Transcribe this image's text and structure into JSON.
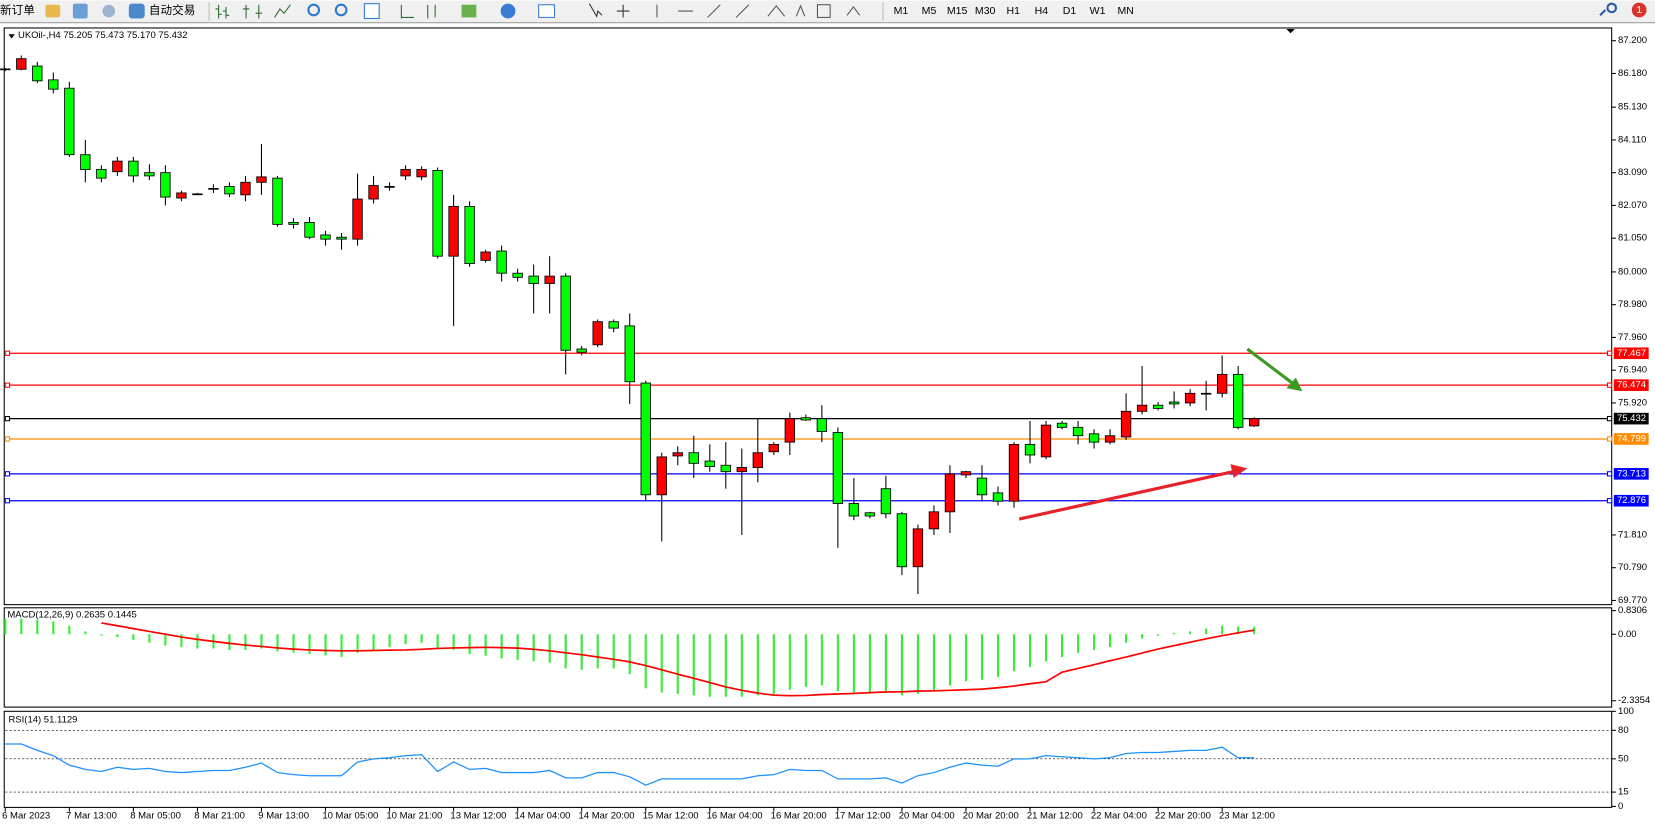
{
  "toolbar": {
    "new_order": "新订单",
    "auto_trading": "自动交易",
    "timeframes": [
      "M1",
      "M5",
      "M15",
      "M30",
      "H1",
      "H4",
      "D1",
      "W1",
      "MN"
    ],
    "notifications": 1
  },
  "chart_data": [
    {
      "type": "candlestick",
      "title": "UKOil-,H4  75.205 75.473 75.170 75.432",
      "categories": [
        "6 Mar 2023",
        null,
        null,
        null,
        "7 Mar 13:00",
        null,
        null,
        null,
        "8 Mar 05:00",
        null,
        null,
        null,
        "8 Mar 21:00",
        null,
        null,
        null,
        "9 Mar 13:00",
        null,
        null,
        null,
        "10 Mar 05:00",
        null,
        null,
        null,
        "10 Mar 21:00",
        null,
        null,
        null,
        "13 Mar 12:00",
        null,
        null,
        null,
        "14 Mar 04:00",
        null,
        null,
        null,
        "14 Mar 20:00",
        null,
        null,
        null,
        "15 Mar 12:00",
        null,
        null,
        null,
        "16 Mar 04:00",
        null,
        null,
        null,
        "16 Mar 20:00",
        null,
        null,
        null,
        "17 Mar 12:00",
        null,
        null,
        null,
        "20 Mar 04:00",
        null,
        null,
        null,
        "20 Mar 20:00",
        null,
        null,
        null,
        "21 Mar 12:00",
        null,
        null,
        null,
        "22 Mar 04:00",
        null,
        null,
        null,
        "22 Mar 20:00",
        null,
        null,
        null,
        "23 Mar 12:00",
        null,
        null
      ],
      "open": [
        86.3,
        86.31,
        86.41,
        85.98,
        85.72,
        83.65,
        83.19,
        83.12,
        83.45,
        83.09,
        83.09,
        82.3,
        82.43,
        82.6,
        82.66,
        82.4,
        82.79,
        82.92,
        81.54,
        81.54,
        81.15,
        81.08,
        81.02,
        82.27,
        82.66,
        82.99,
        82.96,
        83.16,
        80.49,
        82.04,
        80.36,
        80.65,
        79.96,
        79.87,
        79.64,
        79.87,
        77.6,
        77.73,
        78.45,
        78.32,
        76.54,
        73.06,
        74.27,
        74.37,
        74.11,
        73.98,
        73.78,
        73.91,
        74.4,
        74.7,
        75.46,
        75.43,
        75.0,
        72.79,
        72.5,
        73.25,
        72.47,
        70.82,
        72.0,
        72.53,
        73.68,
        73.58,
        73.12,
        72.86,
        74.63,
        74.24,
        75.29,
        75.16,
        74.96,
        74.7,
        74.86,
        75.66,
        75.85,
        75.95,
        75.92,
        76.22,
        76.22,
        76.81,
        75.205
      ],
      "high": [
        86.35,
        86.74,
        86.54,
        86.21,
        85.92,
        84.11,
        83.32,
        83.58,
        83.58,
        83.35,
        83.32,
        82.53,
        82.46,
        82.73,
        82.79,
        82.99,
        83.98,
        82.99,
        81.67,
        81.71,
        81.28,
        81.21,
        83.06,
        82.99,
        82.79,
        83.32,
        83.29,
        83.25,
        82.4,
        82.2,
        80.69,
        80.82,
        80.1,
        80.23,
        80.49,
        79.96,
        77.69,
        78.52,
        78.52,
        78.71,
        76.61,
        74.37,
        74.57,
        74.9,
        74.63,
        74.7,
        74.5,
        75.43,
        74.7,
        75.62,
        75.56,
        75.85,
        75.16,
        73.58,
        72.53,
        73.65,
        72.53,
        72.13,
        72.73,
        73.98,
        73.81,
        73.98,
        73.32,
        74.7,
        75.36,
        75.36,
        75.36,
        75.36,
        75.1,
        75.1,
        76.22,
        77.07,
        75.95,
        76.28,
        76.35,
        76.61,
        77.4,
        77.07,
        75.473
      ],
      "low": [
        86.25,
        86.28,
        85.88,
        85.56,
        83.58,
        82.79,
        82.79,
        82.99,
        82.79,
        82.86,
        82.07,
        82.2,
        82.4,
        82.46,
        82.33,
        82.2,
        82.4,
        81.41,
        81.35,
        81.02,
        80.82,
        80.69,
        80.82,
        82.13,
        82.53,
        82.86,
        82.86,
        80.42,
        78.32,
        80.16,
        80.29,
        79.7,
        79.7,
        78.71,
        78.71,
        76.81,
        77.4,
        77.66,
        78.12,
        75.89,
        72.86,
        71.61,
        73.98,
        73.58,
        73.78,
        73.25,
        71.81,
        73.45,
        74.3,
        74.3,
        75.36,
        74.7,
        71.41,
        72.27,
        72.33,
        72.33,
        70.56,
        69.97,
        71.81,
        71.87,
        73.58,
        72.86,
        72.73,
        72.66,
        74.04,
        74.17,
        75.1,
        74.63,
        74.5,
        74.63,
        74.77,
        75.56,
        75.69,
        75.75,
        75.82,
        75.69,
        76.09,
        75.1,
        75.17
      ],
      "close": [
        86.32,
        86.64,
        85.95,
        85.69,
        83.65,
        83.19,
        82.92,
        83.45,
        82.99,
        82.99,
        82.33,
        82.46,
        82.43,
        82.6,
        82.43,
        82.79,
        82.96,
        81.48,
        81.48,
        81.08,
        81.02,
        81.02,
        82.27,
        82.69,
        82.66,
        83.19,
        83.19,
        80.49,
        82.04,
        80.26,
        80.62,
        79.96,
        79.83,
        79.64,
        79.87,
        77.56,
        77.5,
        78.45,
        78.25,
        76.58,
        73.06,
        74.24,
        74.37,
        74.04,
        73.94,
        73.78,
        73.91,
        74.37,
        74.63,
        75.43,
        75.39,
        75.03,
        72.79,
        72.4,
        72.4,
        72.47,
        70.82,
        72.0,
        72.53,
        73.71,
        73.78,
        73.06,
        72.86,
        74.63,
        74.3,
        75.23,
        75.16,
        74.9,
        74.7,
        74.9,
        75.66,
        75.85,
        75.75,
        75.89,
        76.22,
        76.22,
        76.81,
        75.16,
        75.432
      ],
      "up_color": "#ff0000",
      "down_color": "#00ff00",
      "ylim": [
        69.64,
        87.53
      ],
      "yticks": [
        {
          "value": 87.2,
          "label": "87.200"
        },
        {
          "value": 86.18,
          "label": "86.180"
        },
        {
          "value": 85.13,
          "label": "85.130"
        },
        {
          "value": 84.11,
          "label": "84.110"
        },
        {
          "value": 83.09,
          "label": "83.090"
        },
        {
          "value": 82.07,
          "label": "82.070"
        },
        {
          "value": 81.05,
          "label": "81.050"
        },
        {
          "value": 80,
          "label": "80.000"
        },
        {
          "value": 78.98,
          "label": "78.980"
        },
        {
          "value": 77.96,
          "label": "77.960"
        },
        {
          "value": 76.94,
          "label": "76.940"
        },
        {
          "value": 75.92,
          "label": "75.920"
        },
        {
          "value": 71.81,
          "label": "71.810"
        },
        {
          "value": 70.79,
          "label": "70.790"
        },
        {
          "value": 69.77,
          "label": "69.770"
        }
      ],
      "levels": [
        {
          "value": 77.467,
          "color": "#ff0000"
        },
        {
          "value": 76.474,
          "color": "#ff0000"
        },
        {
          "value": 75.432,
          "color": "#000000"
        },
        {
          "value": 74.799,
          "color": "#ff8c00"
        },
        {
          "value": 73.713,
          "color": "#0000ff"
        },
        {
          "value": 72.876,
          "color": "#0000ff"
        }
      ]
    },
    {
      "type": "macd",
      "title": "MACD(12,26,9) 0.2635 0.1445",
      "histogram": {
        "color": "#33ee33",
        "values": [
          0.55,
          0.55,
          0.5,
          0.45,
          0.3,
          0.1,
          -0.05,
          -0.1,
          -0.2,
          -0.3,
          -0.4,
          -0.45,
          -0.5,
          -0.5,
          -0.55,
          -0.55,
          -0.5,
          -0.6,
          -0.65,
          -0.7,
          -0.75,
          -0.8,
          -0.65,
          -0.55,
          -0.45,
          -0.35,
          -0.3,
          -0.5,
          -0.55,
          -0.7,
          -0.75,
          -0.85,
          -0.9,
          -0.95,
          -1.0,
          -1.2,
          -1.25,
          -1.2,
          -1.2,
          -1.4,
          -1.9,
          -2.05,
          -2.1,
          -2.15,
          -2.2,
          -2.2,
          -2.2,
          -2.15,
          -2.1,
          -1.95,
          -1.85,
          -1.8,
          -2.0,
          -2.05,
          -2.05,
          -2.0,
          -2.15,
          -2.1,
          -2.0,
          -1.8,
          -1.65,
          -1.6,
          -1.5,
          -1.3,
          -1.15,
          -0.95,
          -0.8,
          -0.65,
          -0.55,
          -0.45,
          -0.3,
          -0.15,
          -0.05,
          0.05,
          0.1,
          0.2,
          0.3,
          0.28,
          0.2635
        ]
      },
      "signal": {
        "color": "#ff0000",
        "values": [
          null,
          null,
          null,
          null,
          null,
          null,
          0.4,
          0.3,
          0.2,
          0.1,
          0.0,
          -0.1,
          -0.18,
          -0.25,
          -0.32,
          -0.38,
          -0.43,
          -0.48,
          -0.52,
          -0.55,
          -0.57,
          -0.58,
          -0.58,
          -0.57,
          -0.56,
          -0.55,
          -0.53,
          -0.5,
          -0.48,
          -0.47,
          -0.46,
          -0.47,
          -0.49,
          -0.53,
          -0.58,
          -0.65,
          -0.72,
          -0.8,
          -0.88,
          -0.97,
          -1.1,
          -1.25,
          -1.4,
          -1.55,
          -1.7,
          -1.85,
          -1.97,
          -2.07,
          -2.14,
          -2.16,
          -2.15,
          -2.12,
          -2.1,
          -2.08,
          -2.05,
          -2.03,
          -2.02,
          -2.0,
          -1.99,
          -1.97,
          -1.95,
          -1.93,
          -1.88,
          -1.82,
          -1.74,
          -1.67,
          -1.33,
          -1.2,
          -1.07,
          -0.93,
          -0.8,
          -0.66,
          -0.52,
          -0.4,
          -0.28,
          -0.16,
          -0.05,
          0.05,
          0.1445
        ]
      },
      "ylim": [
        -2.56,
        0.93
      ],
      "yticks": [
        0.8306,
        {
          "value": 0,
          "label": "0.00"
        },
        -2.3354
      ],
      "grid": false
    },
    {
      "type": "line",
      "title": "RSI(14) 51.1129",
      "color": "#1e90ff",
      "values": [
        65.6,
        65.6,
        58.9,
        53.3,
        43.3,
        38.9,
        36.7,
        41.1,
        38.9,
        40.0,
        36.7,
        35.6,
        36.7,
        37.8,
        37.8,
        41.1,
        45.6,
        35.6,
        33.3,
        32.2,
        32.2,
        32.2,
        46.7,
        50.0,
        51.1,
        53.3,
        54.4,
        36.7,
        46.7,
        38.9,
        40.0,
        35.6,
        35.6,
        35.6,
        37.8,
        30.0,
        30.0,
        35.6,
        35.6,
        31.1,
        22.2,
        28.9,
        28.9,
        28.9,
        28.9,
        28.9,
        28.9,
        32.2,
        33.3,
        38.9,
        37.8,
        37.8,
        28.9,
        28.9,
        28.9,
        30.0,
        24.4,
        32.2,
        35.6,
        41.1,
        45.6,
        43.3,
        42.2,
        50.0,
        50.0,
        53.3,
        52.2,
        51.1,
        50.0,
        51.1,
        55.6,
        56.7,
        56.7,
        57.8,
        58.9,
        58.9,
        62.2,
        51.1,
        51.1129
      ],
      "ylim": [
        0,
        100
      ],
      "yticks": [
        100,
        80,
        50,
        15,
        0
      ],
      "grid": "dashed"
    }
  ]
}
